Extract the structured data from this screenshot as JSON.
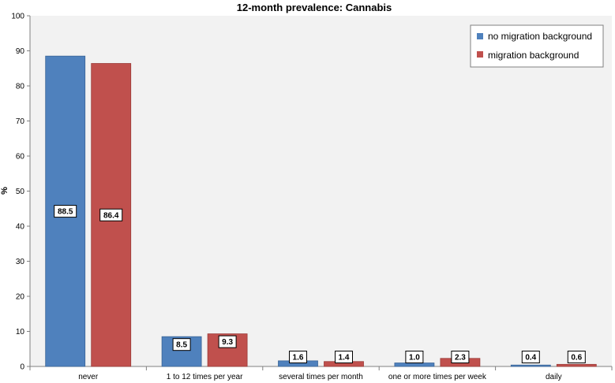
{
  "chart_data": {
    "type": "bar",
    "title": "12-month prevalence: Cannabis",
    "xlabel": "",
    "ylabel": "%",
    "ylim": [
      0,
      100
    ],
    "yticks": [
      0,
      10,
      20,
      30,
      40,
      50,
      60,
      70,
      80,
      90,
      100
    ],
    "grid": false,
    "legend_position": "top-right",
    "categories": [
      "never",
      "1 to 12 times per year",
      "several times per month",
      "one or more times per week",
      "daily"
    ],
    "series": [
      {
        "name": "no migration background",
        "color": "#4F81BD",
        "values": [
          88.5,
          8.5,
          1.6,
          1.0,
          0.4
        ],
        "labels": [
          "88.5",
          "8.5",
          "1.6",
          "1.0",
          "0.4"
        ]
      },
      {
        "name": "migration background",
        "color": "#C0504D",
        "values": [
          86.4,
          9.3,
          1.4,
          2.3,
          0.6
        ],
        "labels": [
          "86.4",
          "9.3",
          "1.4",
          "2.3",
          "0.6"
        ]
      }
    ]
  },
  "colors": {
    "plot_background": "#F2F2F2",
    "axis": "#808080"
  }
}
